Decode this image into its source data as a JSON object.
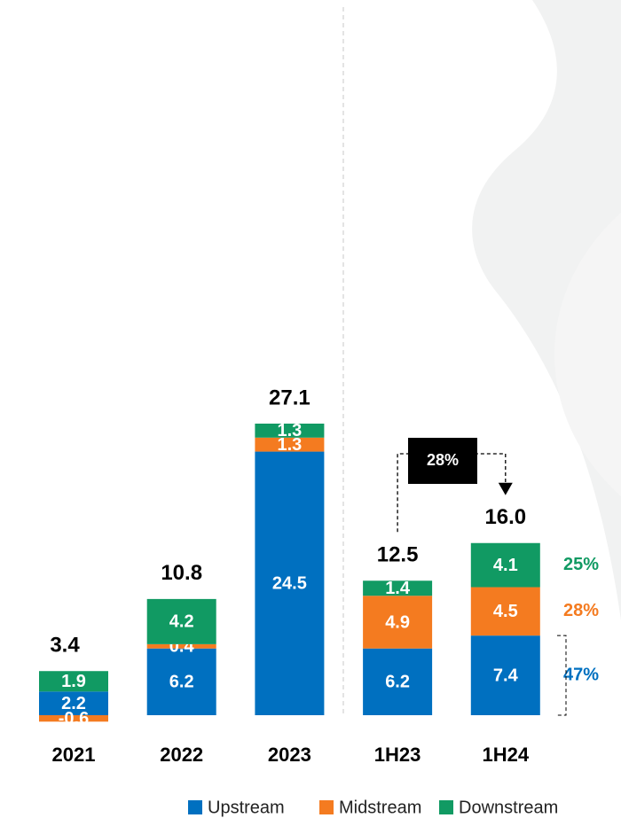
{
  "chart_data": {
    "type": "stacked_bar",
    "categories": [
      "2021",
      "2022",
      "2023",
      "1H23",
      "1H24"
    ],
    "series": [
      {
        "name": "Upstream",
        "color": "#0070c0",
        "values": [
          2.2,
          6.2,
          24.5,
          6.2,
          7.4
        ]
      },
      {
        "name": "Midstream",
        "color": "#f47b20",
        "values": [
          -0.6,
          0.4,
          1.3,
          4.9,
          4.5
        ]
      },
      {
        "name": "Downstream",
        "color": "#119a63",
        "values": [
          1.9,
          4.2,
          1.3,
          1.4,
          4.1
        ]
      }
    ],
    "totals": {
      "values": [
        3.4,
        10.8,
        27.1,
        12.5,
        16
      ],
      "value_labels": [
        "3.4",
        "10.8",
        "27.1",
        "12.5",
        "16.0"
      ]
    },
    "growth": {
      "value": 28,
      "label": "28%"
    },
    "shares": {
      "values": [
        25,
        28,
        47
      ],
      "value_labels": [
        "25%",
        "28%",
        "47%"
      ]
    }
  }
}
